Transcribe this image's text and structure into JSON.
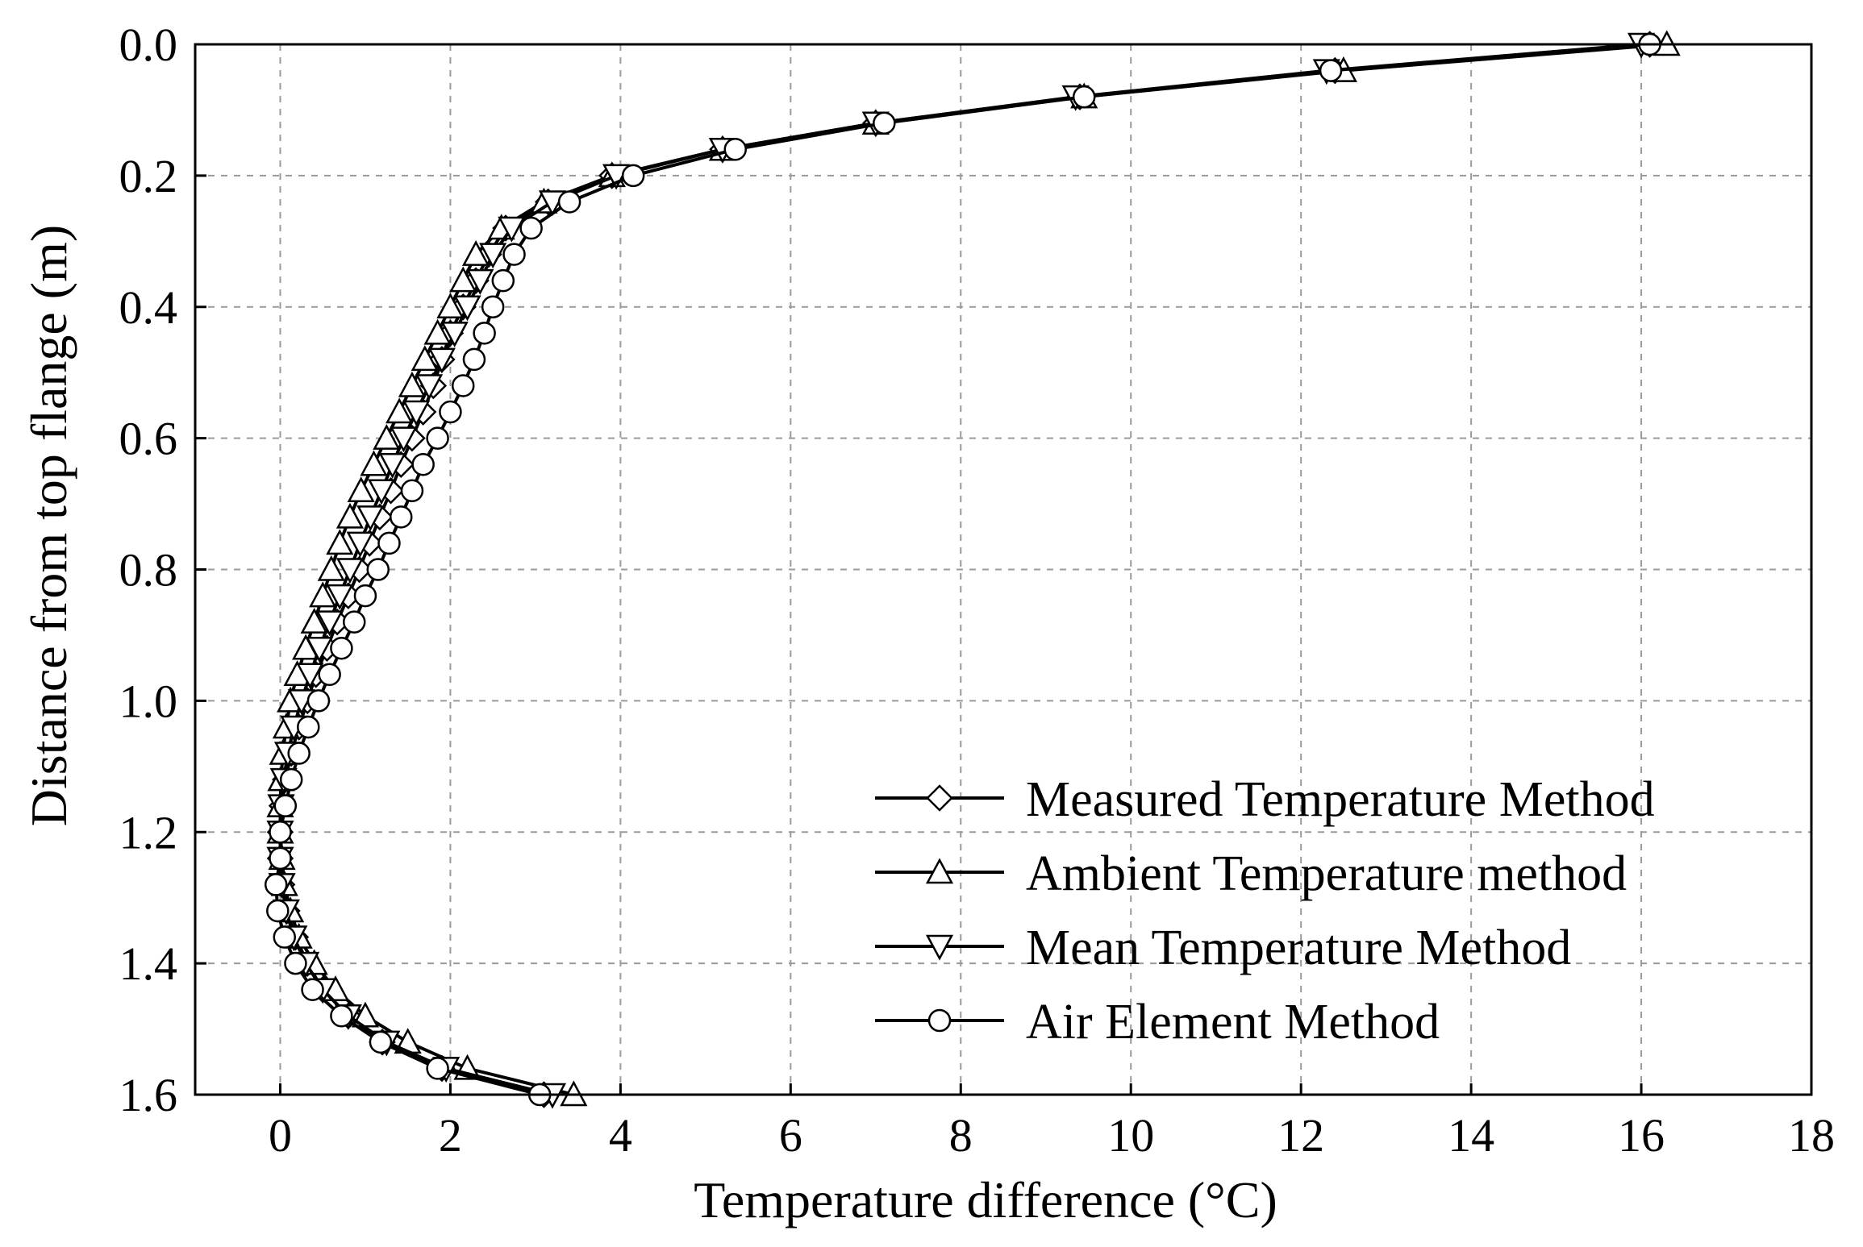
{
  "chart_data": {
    "type": "line",
    "title": "",
    "xlabel": "Temperature difference (°C)",
    "ylabel": "Distance from top flange (m)",
    "xlim": [
      -1,
      18
    ],
    "ylim": [
      1.6,
      0.0
    ],
    "xticks": [
      0,
      2,
      4,
      6,
      8,
      10,
      12,
      14,
      16,
      18
    ],
    "yticks": [
      0.0,
      0.2,
      0.4,
      0.6,
      0.8,
      1.0,
      1.2,
      1.4,
      1.6
    ],
    "x_tick_labels": [
      "0",
      "2",
      "4",
      "6",
      "8",
      "10",
      "12",
      "14",
      "16",
      "18"
    ],
    "y_tick_labels": [
      "0.0",
      "0.2",
      "0.4",
      "0.6",
      "0.8",
      "1.0",
      "1.2",
      "1.4",
      "1.6"
    ],
    "grid": true,
    "legend_position": "bottom-right",
    "series": [
      {
        "name": "Measured Temperature Method",
        "marker": "diamond",
        "points": [
          [
            16.1,
            0.0
          ],
          [
            12.4,
            0.04
          ],
          [
            9.4,
            0.08
          ],
          [
            7.0,
            0.12
          ],
          [
            5.2,
            0.16
          ],
          [
            3.9,
            0.2
          ],
          [
            3.15,
            0.24
          ],
          [
            2.65,
            0.28
          ],
          [
            2.45,
            0.32
          ],
          [
            2.3,
            0.36
          ],
          [
            2.15,
            0.4
          ],
          [
            2.0,
            0.44
          ],
          [
            1.9,
            0.48
          ],
          [
            1.8,
            0.52
          ],
          [
            1.68,
            0.56
          ],
          [
            1.55,
            0.6
          ],
          [
            1.42,
            0.64
          ],
          [
            1.3,
            0.68
          ],
          [
            1.17,
            0.72
          ],
          [
            1.05,
            0.76
          ],
          [
            0.93,
            0.8
          ],
          [
            0.8,
            0.84
          ],
          [
            0.67,
            0.88
          ],
          [
            0.55,
            0.92
          ],
          [
            0.42,
            0.96
          ],
          [
            0.32,
            1.0
          ],
          [
            0.22,
            1.04
          ],
          [
            0.13,
            1.08
          ],
          [
            0.06,
            1.12
          ],
          [
            0.02,
            1.16
          ],
          [
            0.0,
            1.2
          ],
          [
            0.0,
            1.24
          ],
          [
            0.02,
            1.28
          ],
          [
            0.08,
            1.32
          ],
          [
            0.18,
            1.36
          ],
          [
            0.32,
            1.4
          ],
          [
            0.5,
            1.44
          ],
          [
            0.8,
            1.48
          ],
          [
            1.2,
            1.52
          ],
          [
            1.9,
            1.56
          ],
          [
            3.1,
            1.6
          ]
        ]
      },
      {
        "name": "Ambient Temperature method",
        "marker": "triangle-up",
        "points": [
          [
            16.3,
            0.0
          ],
          [
            12.5,
            0.04
          ],
          [
            9.45,
            0.08
          ],
          [
            7.0,
            0.12
          ],
          [
            5.2,
            0.16
          ],
          [
            3.9,
            0.2
          ],
          [
            3.1,
            0.24
          ],
          [
            2.6,
            0.28
          ],
          [
            2.3,
            0.32
          ],
          [
            2.15,
            0.36
          ],
          [
            2.0,
            0.4
          ],
          [
            1.85,
            0.44
          ],
          [
            1.7,
            0.48
          ],
          [
            1.55,
            0.52
          ],
          [
            1.4,
            0.56
          ],
          [
            1.25,
            0.6
          ],
          [
            1.1,
            0.64
          ],
          [
            0.95,
            0.68
          ],
          [
            0.82,
            0.72
          ],
          [
            0.7,
            0.76
          ],
          [
            0.6,
            0.8
          ],
          [
            0.5,
            0.84
          ],
          [
            0.4,
            0.88
          ],
          [
            0.3,
            0.92
          ],
          [
            0.2,
            0.96
          ],
          [
            0.12,
            1.0
          ],
          [
            0.07,
            1.04
          ],
          [
            0.03,
            1.08
          ],
          [
            0.01,
            1.12
          ],
          [
            0.0,
            1.16
          ],
          [
            0.0,
            1.2
          ],
          [
            0.02,
            1.24
          ],
          [
            0.05,
            1.28
          ],
          [
            0.12,
            1.32
          ],
          [
            0.22,
            1.36
          ],
          [
            0.4,
            1.4
          ],
          [
            0.65,
            1.44
          ],
          [
            1.0,
            1.48
          ],
          [
            1.5,
            1.52
          ],
          [
            2.2,
            1.56
          ],
          [
            3.45,
            1.6
          ]
        ]
      },
      {
        "name": "Mean Temperature Method",
        "marker": "triangle-down",
        "points": [
          [
            16.0,
            0.0
          ],
          [
            12.3,
            0.04
          ],
          [
            9.35,
            0.08
          ],
          [
            7.0,
            0.12
          ],
          [
            5.2,
            0.16
          ],
          [
            3.95,
            0.2
          ],
          [
            3.2,
            0.24
          ],
          [
            2.72,
            0.28
          ],
          [
            2.5,
            0.32
          ],
          [
            2.35,
            0.36
          ],
          [
            2.2,
            0.4
          ],
          [
            2.05,
            0.44
          ],
          [
            1.9,
            0.48
          ],
          [
            1.75,
            0.52
          ],
          [
            1.6,
            0.56
          ],
          [
            1.45,
            0.6
          ],
          [
            1.32,
            0.64
          ],
          [
            1.19,
            0.68
          ],
          [
            1.06,
            0.72
          ],
          [
            0.94,
            0.76
          ],
          [
            0.82,
            0.8
          ],
          [
            0.7,
            0.84
          ],
          [
            0.58,
            0.88
          ],
          [
            0.46,
            0.92
          ],
          [
            0.35,
            0.96
          ],
          [
            0.25,
            1.0
          ],
          [
            0.16,
            1.04
          ],
          [
            0.09,
            1.08
          ],
          [
            0.04,
            1.12
          ],
          [
            0.01,
            1.16
          ],
          [
            0.0,
            1.2
          ],
          [
            0.0,
            1.24
          ],
          [
            0.02,
            1.28
          ],
          [
            0.07,
            1.32
          ],
          [
            0.16,
            1.36
          ],
          [
            0.3,
            1.4
          ],
          [
            0.5,
            1.44
          ],
          [
            0.8,
            1.48
          ],
          [
            1.25,
            1.52
          ],
          [
            1.95,
            1.56
          ],
          [
            3.2,
            1.6
          ]
        ]
      },
      {
        "name": "Air Element Method",
        "marker": "circle",
        "points": [
          [
            16.1,
            0.0
          ],
          [
            12.35,
            0.04
          ],
          [
            9.45,
            0.08
          ],
          [
            7.1,
            0.12
          ],
          [
            5.35,
            0.16
          ],
          [
            4.15,
            0.2
          ],
          [
            3.4,
            0.24
          ],
          [
            2.95,
            0.28
          ],
          [
            2.75,
            0.32
          ],
          [
            2.62,
            0.36
          ],
          [
            2.5,
            0.4
          ],
          [
            2.4,
            0.44
          ],
          [
            2.28,
            0.48
          ],
          [
            2.15,
            0.52
          ],
          [
            2.0,
            0.56
          ],
          [
            1.85,
            0.6
          ],
          [
            1.68,
            0.64
          ],
          [
            1.55,
            0.68
          ],
          [
            1.42,
            0.72
          ],
          [
            1.28,
            0.76
          ],
          [
            1.15,
            0.8
          ],
          [
            1.0,
            0.84
          ],
          [
            0.87,
            0.88
          ],
          [
            0.72,
            0.92
          ],
          [
            0.58,
            0.96
          ],
          [
            0.45,
            1.0
          ],
          [
            0.33,
            1.04
          ],
          [
            0.22,
            1.08
          ],
          [
            0.13,
            1.12
          ],
          [
            0.06,
            1.16
          ],
          [
            0.0,
            1.2
          ],
          [
            0.0,
            1.24
          ],
          [
            -0.05,
            1.28
          ],
          [
            -0.03,
            1.32
          ],
          [
            0.05,
            1.36
          ],
          [
            0.18,
            1.4
          ],
          [
            0.38,
            1.44
          ],
          [
            0.72,
            1.48
          ],
          [
            1.18,
            1.52
          ],
          [
            1.85,
            1.56
          ],
          [
            3.05,
            1.6
          ]
        ]
      }
    ]
  }
}
